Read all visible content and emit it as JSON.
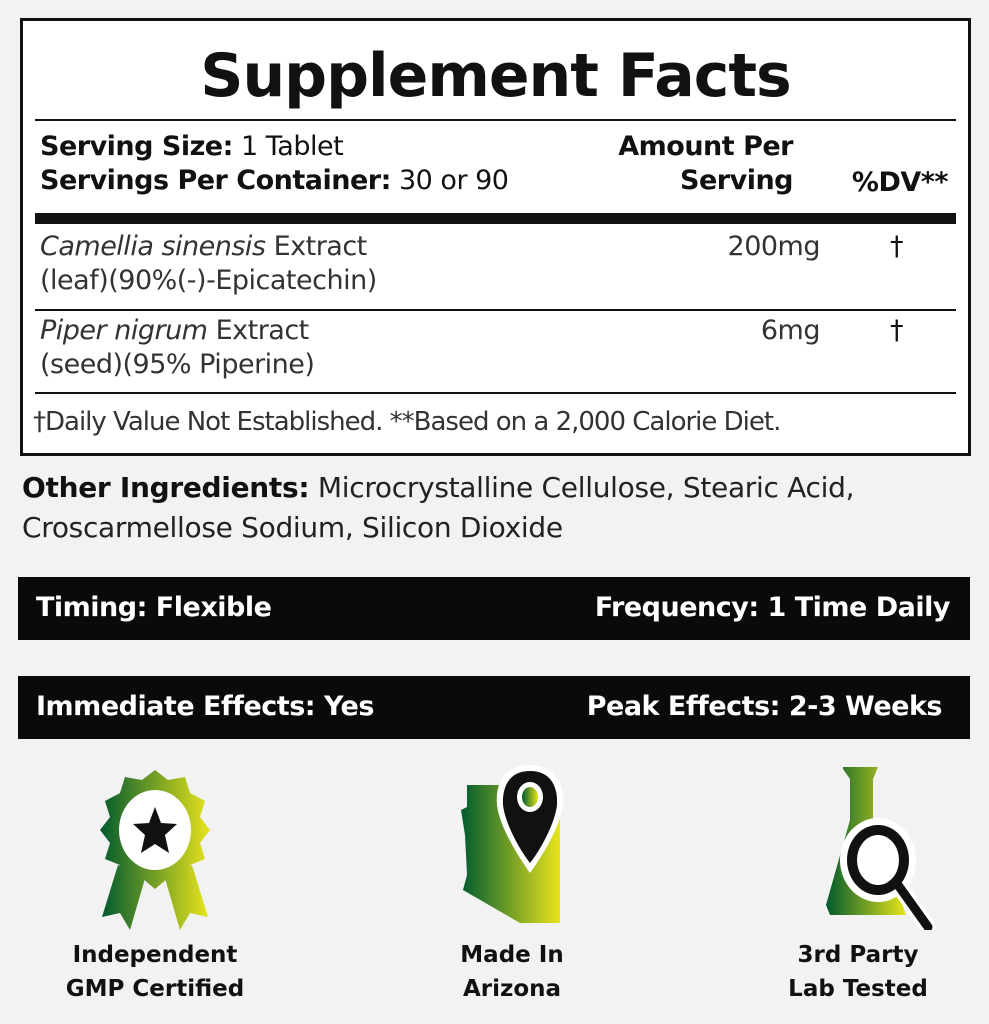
{
  "facts": {
    "title": "Supplement Facts",
    "serving_size_label": "Serving Size:",
    "serving_size_value": "1 Tablet",
    "servings_label": "Servings Per Container:",
    "servings_value": "30 or 90",
    "amount_header_1": "Amount Per",
    "amount_header_2": "Serving",
    "dv_header": "%DV**",
    "rows": [
      {
        "name_italic": "Camellia sinensis",
        "name_rest": " Extract",
        "detail": "(leaf)(90%(-)-Epicatechin)",
        "amount": "200mg",
        "dv": "†"
      },
      {
        "name_italic": "Piper nigrum",
        "name_rest": " Extract",
        "detail": "(seed)(95% Piperine)",
        "amount": "6mg",
        "dv": "†"
      }
    ],
    "footnote": "†Daily Value Not Established. **Based on a 2,000 Calorie Diet."
  },
  "other_ingredients": {
    "label": "Other Ingredients:",
    "value": " Microcrystalline Cellulose, Stearic Acid, Croscarmellose Sodium, Silicon Dioxide"
  },
  "bars": [
    {
      "left": "Timing: Flexible",
      "right": "Frequency: 1 Time Daily"
    },
    {
      "left": "Immediate Effects: Yes",
      "right": "Peak Effects: 2-3 Weeks"
    }
  ],
  "badges": [
    {
      "icon": "award-ribbon-star-icon",
      "line1": "Independent",
      "line2": "GMP Certified"
    },
    {
      "icon": "arizona-map-pin-icon",
      "line1": "Made In",
      "line2": "Arizona"
    },
    {
      "icon": "flask-magnifier-icon",
      "line1": "3rd Party",
      "line2": "Lab Tested"
    }
  ],
  "colors": {
    "gradient_start": "#005a2e",
    "gradient_end": "#e8e41c",
    "bar": "#0a0a0a"
  }
}
